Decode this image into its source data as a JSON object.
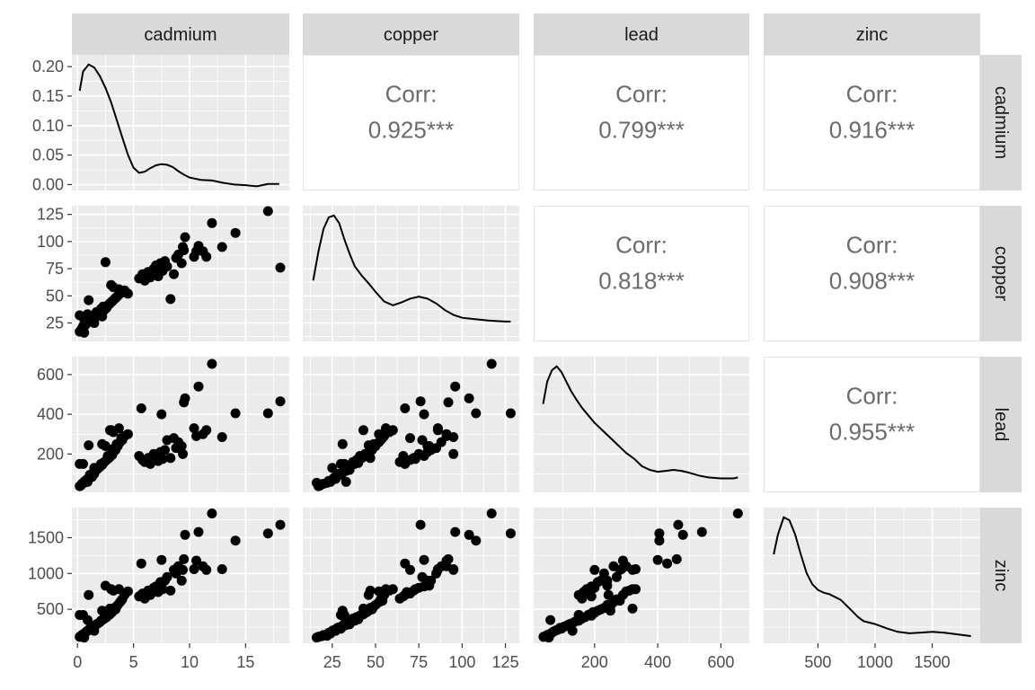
{
  "chart_data": {
    "type": "scatter",
    "variables": [
      "cadmium",
      "copper",
      "lead",
      "zinc"
    ],
    "col_strips": [
      "cadmium",
      "copper",
      "lead",
      "zinc"
    ],
    "row_strips": [
      "cadmium",
      "copper",
      "lead",
      "zinc"
    ],
    "correlations": [
      {
        "row": 0,
        "col": 1,
        "label": "Corr:",
        "value": "0.925***"
      },
      {
        "row": 0,
        "col": 2,
        "label": "Corr:",
        "value": "0.799***"
      },
      {
        "row": 0,
        "col": 3,
        "label": "Corr:",
        "value": "0.916***"
      },
      {
        "row": 1,
        "col": 2,
        "label": "Corr:",
        "value": "0.818***"
      },
      {
        "row": 1,
        "col": 3,
        "label": "Corr:",
        "value": "0.908***"
      },
      {
        "row": 2,
        "col": 3,
        "label": "Corr:",
        "value": "0.955***"
      }
    ],
    "x_axes": [
      {
        "var": "cadmium",
        "range": [
          -0.5,
          18.9
        ],
        "ticks": [
          "0",
          "5",
          "10",
          "15"
        ],
        "tick_values": [
          0,
          5,
          10,
          15
        ]
      },
      {
        "var": "copper",
        "range": [
          8,
          133
        ],
        "ticks": [
          "25",
          "50",
          "75",
          "100",
          "125"
        ],
        "tick_values": [
          25,
          50,
          75,
          100,
          125
        ]
      },
      {
        "var": "lead",
        "range": [
          7,
          690
        ],
        "ticks": [
          "200",
          "400",
          "600"
        ],
        "tick_values": [
          200,
          400,
          600
        ]
      },
      {
        "var": "zinc",
        "range": [
          25,
          1920
        ],
        "ticks": [
          "500",
          "1000",
          "1500"
        ],
        "tick_values": [
          500,
          1000,
          1500
        ]
      }
    ],
    "y_axes": [
      {
        "var": "cadmium density",
        "range": [
          -0.01,
          0.22
        ],
        "ticks": [
          "0.00",
          "0.05",
          "0.10",
          "0.15",
          "0.20"
        ],
        "tick_values": [
          0,
          0.05,
          0.1,
          0.15,
          0.2
        ]
      },
      {
        "var": "copper",
        "range": [
          8,
          133
        ],
        "ticks": [
          "25",
          "50",
          "75",
          "100",
          "125"
        ],
        "tick_values": [
          25,
          50,
          75,
          100,
          125
        ]
      },
      {
        "var": "lead",
        "range": [
          7,
          690
        ],
        "ticks": [
          "200",
          "400",
          "600"
        ],
        "tick_values": [
          200,
          400,
          600
        ]
      },
      {
        "var": "zinc",
        "range": [
          25,
          1920
        ],
        "ticks": [
          "500",
          "1000",
          "1500"
        ],
        "tick_values": [
          500,
          1000,
          1500
        ]
      }
    ],
    "densities": [
      {
        "var": "cadmium",
        "x": [
          0.2,
          0.5,
          1,
          1.5,
          2,
          2.5,
          3,
          3.5,
          4,
          4.5,
          5,
          5.5,
          6,
          6.5,
          7,
          7.5,
          8,
          8.5,
          9,
          9.5,
          10,
          11,
          12,
          13,
          14,
          15,
          16,
          17,
          18
        ],
        "y": [
          0.165,
          0.198,
          0.21,
          0.205,
          0.19,
          0.17,
          0.145,
          0.115,
          0.085,
          0.055,
          0.033,
          0.024,
          0.026,
          0.032,
          0.037,
          0.039,
          0.038,
          0.034,
          0.027,
          0.021,
          0.016,
          0.012,
          0.011,
          0.007,
          0.004,
          0.003,
          0.001,
          0.005,
          0.005
        ]
      },
      {
        "var": "copper",
        "x": [
          14,
          17,
          20,
          23,
          26,
          29,
          32,
          35,
          38,
          42,
          46,
          50,
          55,
          60,
          65,
          70,
          75,
          80,
          85,
          90,
          95,
          100,
          105,
          110,
          115,
          120,
          125,
          128
        ],
        "y": [
          0.06,
          0.09,
          0.114,
          0.126,
          0.128,
          0.12,
          0.103,
          0.088,
          0.075,
          0.065,
          0.057,
          0.048,
          0.038,
          0.034,
          0.037,
          0.041,
          0.043,
          0.041,
          0.036,
          0.029,
          0.024,
          0.021,
          0.02,
          0.019,
          0.018,
          0.0175,
          0.017,
          0.017
        ]
      },
      {
        "var": "lead",
        "x": [
          37,
          50,
          65,
          80,
          95,
          110,
          125,
          140,
          160,
          180,
          200,
          225,
          250,
          275,
          300,
          325,
          350,
          375,
          400,
          425,
          450,
          475,
          500,
          530,
          560,
          600,
          640,
          654
        ],
        "y": [
          0.45,
          0.57,
          0.63,
          0.65,
          0.62,
          0.57,
          0.52,
          0.48,
          0.43,
          0.39,
          0.35,
          0.31,
          0.27,
          0.23,
          0.19,
          0.16,
          0.12,
          0.1,
          0.09,
          0.095,
          0.1,
          0.095,
          0.085,
          0.07,
          0.06,
          0.055,
          0.055,
          0.06
        ]
      },
      {
        "var": "zinc",
        "x": [
          113,
          150,
          200,
          250,
          300,
          350,
          400,
          450,
          500,
          550,
          600,
          650,
          700,
          750,
          800,
          850,
          900,
          950,
          1000,
          1100,
          1200,
          1300,
          1400,
          1500,
          1600,
          1700,
          1839
        ],
        "y": [
          0.6,
          0.74,
          0.86,
          0.84,
          0.74,
          0.6,
          0.47,
          0.39,
          0.35,
          0.33,
          0.32,
          0.3,
          0.28,
          0.24,
          0.2,
          0.16,
          0.13,
          0.12,
          0.11,
          0.08,
          0.055,
          0.045,
          0.05,
          0.055,
          0.05,
          0.04,
          0.025
        ]
      }
    ],
    "observations": {
      "fields": [
        "cadmium",
        "copper",
        "lead",
        "zinc"
      ],
      "rows": [
        [
          0.4,
          20,
          50,
          140
        ],
        [
          0.5,
          22,
          55,
          130
        ],
        [
          0.3,
          18,
          42,
          120
        ],
        [
          0.6,
          24,
          60,
          160
        ],
        [
          0.2,
          17,
          38,
          115
        ],
        [
          0.8,
          25,
          70,
          190
        ],
        [
          0.9,
          27,
          75,
          200
        ],
        [
          0.7,
          23,
          65,
          170
        ],
        [
          1.0,
          26,
          80,
          210
        ],
        [
          1.2,
          28,
          90,
          240
        ],
        [
          1.1,
          30,
          95,
          230
        ],
        [
          1.4,
          31,
          105,
          260
        ],
        [
          1.3,
          27,
          85,
          220
        ],
        [
          1.6,
          33,
          115,
          280
        ],
        [
          1.5,
          29,
          100,
          250
        ],
        [
          1.8,
          32,
          125,
          300
        ],
        [
          1.7,
          35,
          120,
          290
        ],
        [
          2.0,
          34,
          135,
          320
        ],
        [
          2.2,
          36,
          145,
          350
        ],
        [
          2.1,
          38,
          150,
          340
        ],
        [
          2.4,
          37,
          160,
          370
        ],
        [
          2.3,
          40,
          155,
          360
        ],
        [
          2.6,
          39,
          170,
          390
        ],
        [
          2.8,
          42,
          180,
          420
        ],
        [
          2.7,
          41,
          190,
          410
        ],
        [
          3.0,
          44,
          200,
          450
        ],
        [
          2.9,
          43,
          185,
          430
        ],
        [
          3.2,
          46,
          210,
          480
        ],
        [
          3.1,
          45,
          195,
          460
        ],
        [
          3.4,
          48,
          220,
          500
        ],
        [
          3.3,
          47,
          230,
          520
        ],
        [
          3.6,
          50,
          240,
          560
        ],
        [
          3.5,
          49,
          250,
          540
        ],
        [
          3.8,
          52,
          260,
          600
        ],
        [
          3.9,
          54,
          280,
          620
        ],
        [
          4.0,
          53,
          270,
          640
        ],
        [
          4.2,
          55,
          290,
          700
        ],
        [
          4.5,
          52,
          300,
          750
        ],
        [
          3.0,
          60,
          320,
          780
        ],
        [
          3.2,
          58,
          310,
          760
        ],
        [
          2.5,
          81,
          240,
          830
        ],
        [
          1.0,
          46,
          244,
          700
        ],
        [
          0.5,
          30,
          150,
          420
        ],
        [
          0.9,
          33,
          60,
          350
        ],
        [
          1.5,
          25,
          130,
          200
        ],
        [
          5.5,
          66,
          190,
          680
        ],
        [
          5.8,
          70,
          170,
          720
        ],
        [
          6.0,
          64,
          160,
          650
        ],
        [
          6.3,
          72,
          180,
          760
        ],
        [
          6.5,
          67,
          150,
          700
        ],
        [
          6.8,
          75,
          200,
          800
        ],
        [
          7.0,
          78,
          190,
          820
        ],
        [
          7.2,
          68,
          165,
          740
        ],
        [
          7.4,
          80,
          210,
          880
        ],
        [
          7.6,
          73,
          175,
          780
        ],
        [
          7.8,
          82,
          220,
          900
        ],
        [
          8.0,
          77,
          270,
          950
        ],
        [
          8.3,
          47,
          180,
          760
        ],
        [
          8.6,
          70,
          280,
          1050
        ],
        [
          8.8,
          85,
          230,
          1000
        ],
        [
          9.0,
          88,
          260,
          1100
        ],
        [
          9.3,
          80,
          240,
          900
        ],
        [
          9.5,
          92,
          460,
          1200
        ],
        [
          9.6,
          104,
          480,
          1540
        ],
        [
          9.4,
          95,
          200,
          1050
        ],
        [
          5.7,
          67,
          430,
          1140
        ],
        [
          7.5,
          78,
          400,
          1190
        ],
        [
          10.4,
          86,
          330,
          1060
        ],
        [
          10.6,
          91,
          290,
          1180
        ],
        [
          10.8,
          96,
          540,
          1580
        ],
        [
          11.2,
          91,
          300,
          1100
        ],
        [
          11.5,
          86,
          320,
          1050
        ],
        [
          12.0,
          117,
          654,
          1839
        ],
        [
          12.9,
          95,
          285,
          1060
        ],
        [
          14.1,
          108,
          405,
          1460
        ],
        [
          17.0,
          128,
          405,
          1560
        ],
        [
          18.1,
          76,
          465,
          1680
        ],
        [
          0.2,
          32,
          150,
          420
        ],
        [
          0.6,
          16,
          55,
          105
        ],
        [
          0.4,
          19,
          48,
          125
        ],
        [
          2.2,
          31,
          250,
          480
        ],
        [
          2.9,
          43,
          320,
          510
        ],
        [
          3.7,
          56,
          330,
          780
        ]
      ]
    }
  }
}
